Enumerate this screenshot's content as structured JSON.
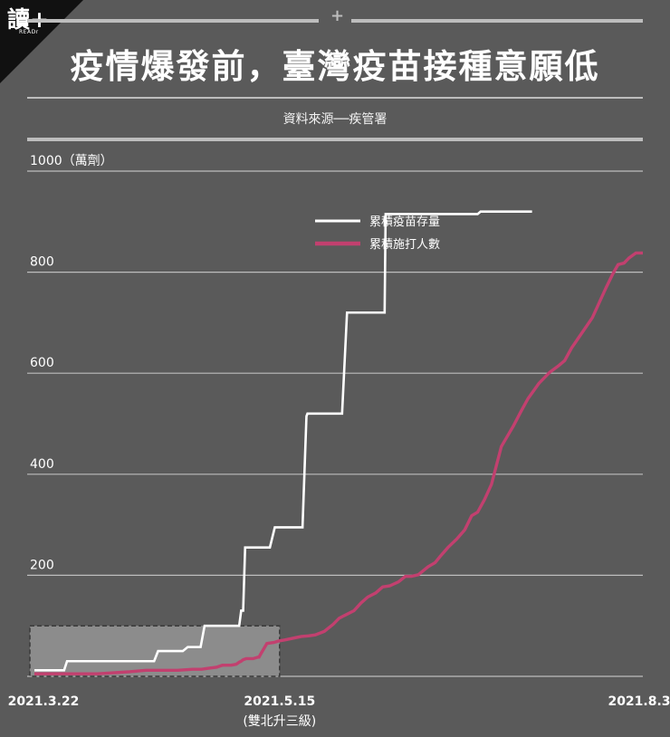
{
  "logo": {
    "text": "讀+",
    "sub": "READr"
  },
  "title": "疫情爆發前，臺灣疫苗接種意願低",
  "source": "資料來源──疾管署",
  "colors": {
    "background": "#5a5a5a",
    "stock": "#ffffff",
    "administered": "#c2406f",
    "highlight": "#8c8c8c"
  },
  "chart_data": {
    "type": "line",
    "ylabel": "1000（萬劑）",
    "ylim": [
      0,
      1000
    ],
    "yticks": [
      200,
      400,
      600,
      800,
      1000
    ],
    "xticks": [
      "2021.3.22",
      "2021.5.15",
      "2021.8.3"
    ],
    "xtick_note": "(雙北升三級)",
    "series": [
      {
        "name": "累積疫苗存量",
        "values": [
          [
            0,
            12
          ],
          [
            30,
            12
          ],
          [
            33,
            30
          ],
          [
            121,
            30
          ],
          [
            125,
            50
          ],
          [
            132,
            50
          ],
          [
            150,
            50
          ],
          [
            155,
            58
          ],
          [
            168,
            58
          ],
          [
            172,
            100
          ],
          [
            190,
            100
          ],
          [
            197,
            100
          ],
          [
            201,
            100
          ],
          [
            207,
            100
          ],
          [
            209,
            130
          ],
          [
            211,
            130
          ],
          [
            213,
            255
          ],
          [
            231,
            255
          ],
          [
            237,
            255
          ],
          [
            238,
            255
          ],
          [
            243,
            295
          ],
          [
            253,
            295
          ],
          [
            271,
            295
          ],
          [
            275,
            515
          ],
          [
            276,
            520
          ],
          [
            277,
            520
          ],
          [
            303,
            520
          ],
          [
            307,
            520
          ],
          [
            311,
            520
          ],
          [
            316,
            720
          ],
          [
            323,
            720
          ],
          [
            331,
            720
          ],
          [
            339,
            720
          ],
          [
            345,
            720
          ],
          [
            354,
            720
          ],
          [
            355,
            915
          ],
          [
            362,
            915
          ],
          [
            378,
            915
          ],
          [
            391,
            915
          ],
          [
            403,
            915
          ],
          [
            424,
            915
          ],
          [
            435,
            915
          ],
          [
            446,
            915
          ],
          [
            448,
            915
          ],
          [
            451,
            920
          ],
          [
            465,
            920
          ],
          [
            503,
            920
          ]
        ]
      },
      {
        "name": "累積施打人數",
        "values": [
          [
            0,
            5
          ],
          [
            15,
            5
          ],
          [
            31,
            5
          ],
          [
            48,
            5
          ],
          [
            64,
            5
          ],
          [
            80,
            7
          ],
          [
            96,
            9
          ],
          [
            113,
            12
          ],
          [
            130,
            12
          ],
          [
            145,
            12
          ],
          [
            160,
            14
          ],
          [
            169,
            14
          ],
          [
            176,
            16
          ],
          [
            184,
            18
          ],
          [
            190,
            22
          ],
          [
            195,
            22
          ],
          [
            199,
            22
          ],
          [
            204,
            24
          ],
          [
            207,
            28
          ],
          [
            209,
            30
          ],
          [
            211,
            33
          ],
          [
            214,
            35
          ],
          [
            217,
            35
          ],
          [
            221,
            35
          ],
          [
            226,
            38
          ],
          [
            227,
            38
          ],
          [
            229,
            45
          ],
          [
            235,
            65
          ],
          [
            242,
            67
          ],
          [
            247,
            70
          ],
          [
            253,
            72
          ],
          [
            258,
            74
          ],
          [
            265,
            77
          ],
          [
            270,
            79
          ],
          [
            277,
            80
          ],
          [
            284,
            82
          ],
          [
            293,
            89
          ],
          [
            302,
            103
          ],
          [
            308,
            115
          ],
          [
            313,
            120
          ],
          [
            323,
            130
          ],
          [
            330,
            145
          ],
          [
            337,
            157
          ],
          [
            345,
            165
          ],
          [
            352,
            177
          ],
          [
            359,
            179
          ],
          [
            368,
            187
          ],
          [
            375,
            198
          ],
          [
            381,
            198
          ],
          [
            388,
            201
          ],
          [
            398,
            217
          ],
          [
            405,
            225
          ],
          [
            410,
            237
          ],
          [
            418,
            255
          ],
          [
            427,
            272
          ],
          [
            435,
            290
          ],
          [
            442,
            318
          ],
          [
            448,
            325
          ],
          [
            455,
            350
          ],
          [
            462,
            380
          ],
          [
            468,
            425
          ],
          [
            472,
            455
          ],
          [
            478,
            475
          ],
          [
            484,
            495
          ],
          [
            492,
            525
          ],
          [
            499,
            550
          ],
          [
            510,
            580
          ],
          [
            521,
            602
          ],
          [
            530,
            615
          ],
          [
            536,
            625
          ],
          [
            543,
            650
          ],
          [
            550,
            670
          ],
          [
            557,
            690
          ],
          [
            564,
            710
          ],
          [
            571,
            740
          ],
          [
            578,
            770
          ],
          [
            585,
            798
          ],
          [
            590,
            815
          ],
          [
            596,
            818
          ],
          [
            601,
            828
          ],
          [
            608,
            838
          ],
          [
            615,
            838
          ]
        ]
      }
    ],
    "highlight_period": {
      "from": "2021.3.22",
      "to": "2021.5.15",
      "y_max": 100
    }
  }
}
